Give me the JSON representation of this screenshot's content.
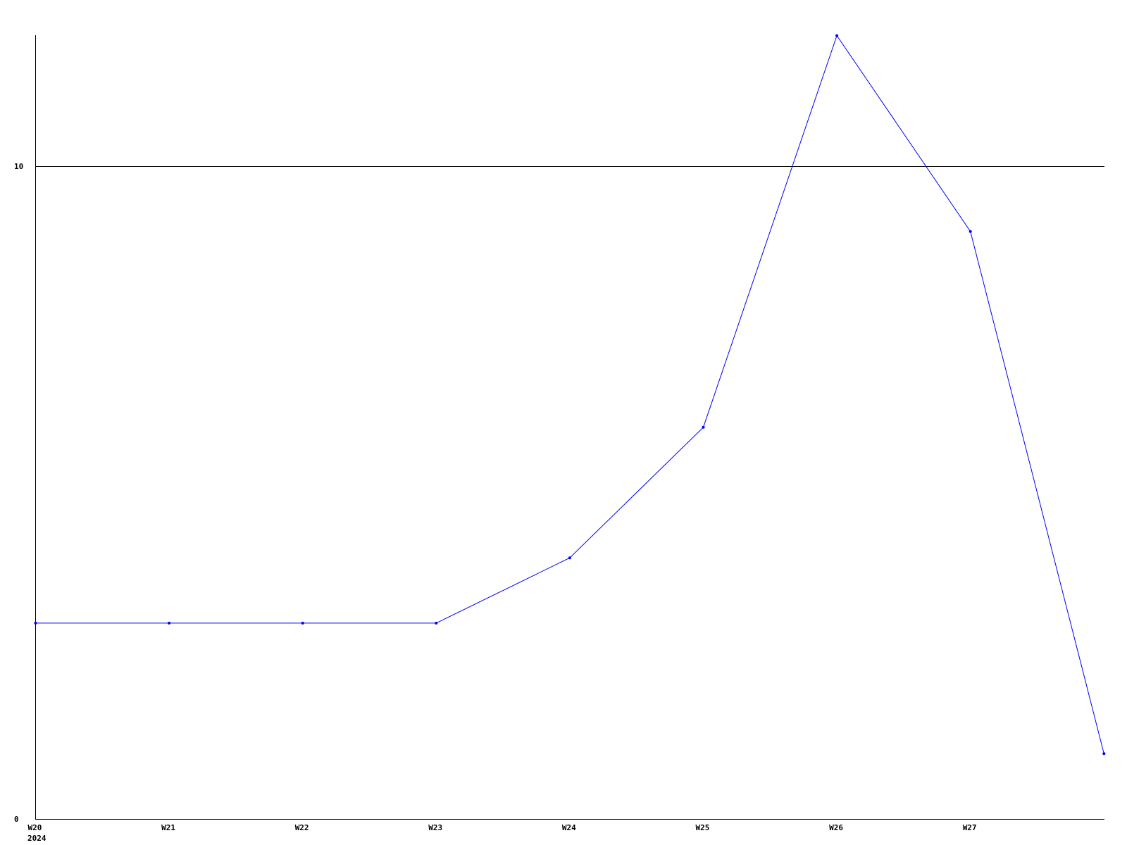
{
  "chart_data": {
    "type": "line",
    "categories": [
      "W20",
      "W21",
      "W22",
      "W23",
      "W24",
      "W25",
      "W26",
      "W27",
      ""
    ],
    "x_tick_labels": [
      "W20",
      "W21",
      "W22",
      "W23",
      "W24",
      "W25",
      "W26",
      "W27"
    ],
    "x_sublabel": "2024",
    "series": [
      {
        "values": [
          3,
          3,
          3,
          3,
          4,
          6,
          12,
          9,
          1
        ],
        "color": "#0000ff"
      }
    ],
    "y_ticks": [
      0,
      10
    ],
    "ylim": [
      0,
      12
    ],
    "grid": "horizontal line at 10",
    "title": "",
    "xlabel": "",
    "ylabel": ""
  }
}
